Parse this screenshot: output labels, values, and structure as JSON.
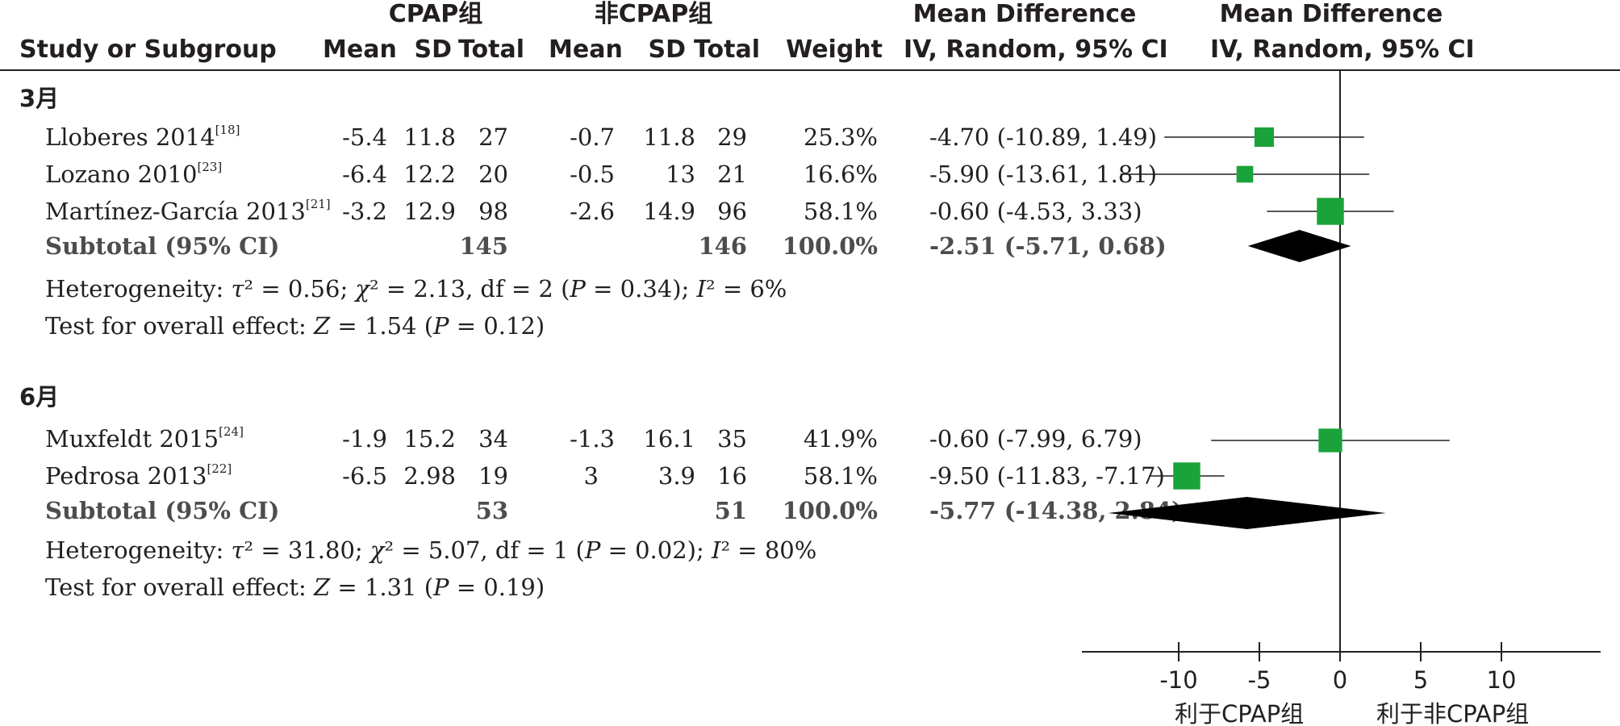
{
  "header": {
    "group_exp": "CPAP组",
    "group_ctrl": "非CPAP组",
    "md_title": "Mean Difference",
    "md_method": "IV, Random, 95% CI",
    "plot_title": "Mean Difference",
    "plot_method": "IV, Random, 95% CI",
    "col_study": "Study or Subgroup",
    "col_mean": "Mean",
    "col_sd": "SD",
    "col_total": "Total",
    "col_weight": "Weight"
  },
  "groups": [
    {
      "label": "3月",
      "studies": [
        {
          "name": "Lloberes 2014",
          "ref": "[18]",
          "m1": "-5.4",
          "sd1": "11.8",
          "n1": "27",
          "m2": "-0.7",
          "sd2": "11.8",
          "n2": "29",
          "weight": "25.3%",
          "ci": "-4.70 (-10.89, 1.49)"
        },
        {
          "name": "Lozano 2010",
          "ref": "[23]",
          "m1": "-6.4",
          "sd1": "12.2",
          "n1": "20",
          "m2": "-0.5",
          "sd2": "13",
          "n2": "21",
          "weight": "16.6%",
          "ci": "-5.90 (-13.61, 1.81)"
        },
        {
          "name": "Martínez-García 2013",
          "ref": "[21]",
          "m1": "-3.2",
          "sd1": "12.9",
          "n1": "98",
          "m2": "-2.6",
          "sd2": "14.9",
          "n2": "96",
          "weight": "58.1%",
          "ci": "-0.60 (-4.53, 3.33)"
        }
      ],
      "subtotal": {
        "label": "Subtotal (95% CI)",
        "n1": "145",
        "n2": "146",
        "weight": "100.0%",
        "ci": "-2.51 (-5.71, 0.68)"
      },
      "het": {
        "prefix": "Heterogeneity: ",
        "tau": "τ",
        "tau_val": "² = 0.56; ",
        "chi": "χ",
        "chi_val": "² = 2.13, df = 2 (",
        "p": "P",
        "p_val": " = 0.34); ",
        "i": "I",
        "i_val": "² = 6%"
      },
      "overall": {
        "prefix": "Test for overall effect: ",
        "z": "Z",
        "z_val": " = 1.54 (",
        "p": "P",
        "p_val": " = 0.12)"
      }
    },
    {
      "label": "6月",
      "studies": [
        {
          "name": "Muxfeldt 2015",
          "ref": "[24]",
          "m1": "-1.9",
          "sd1": "15.2",
          "n1": "34",
          "m2": "-1.3",
          "sd2": "16.1",
          "n2": "35",
          "weight": "41.9%",
          "ci": "-0.60 (-7.99, 6.79)"
        },
        {
          "name": "Pedrosa 2013",
          "ref": "[22]",
          "m1": "-6.5",
          "sd1": "2.98",
          "n1": "19",
          "m2": "3",
          "sd2": "3.9",
          "n2": "16",
          "weight": "58.1%",
          "ci": "-9.50 (-11.83, -7.17)"
        }
      ],
      "subtotal": {
        "label": "Subtotal (95% CI)",
        "n1": "53",
        "n2": "51",
        "weight": "100.0%",
        "ci": "-5.77 (-14.38, 2.84)"
      },
      "het": {
        "prefix": "Heterogeneity: ",
        "tau": "τ",
        "tau_val": "² = 31.80; ",
        "chi": "χ",
        "chi_val": "² = 5.07, df = 1 (",
        "p": "P",
        "p_val": " = 0.02); ",
        "i": "I",
        "i_val": "² = 80%"
      },
      "overall": {
        "prefix": "Test for overall effect: ",
        "z": "Z",
        "z_val": " = 1.31 (",
        "p": "P",
        "p_val": " = 0.19)"
      }
    }
  ],
  "axis": {
    "ticks": [
      "-10",
      "-5",
      "0",
      "5",
      "10"
    ],
    "favours_left": "利于CPAP组",
    "favours_right": "利于非CPAP组"
  },
  "chart_data": {
    "type": "forest",
    "xlim": [
      -16,
      16
    ],
    "x_ticks": [
      -10,
      -5,
      0,
      5,
      10
    ],
    "study_color": "#1aa33a",
    "summary_color": "#000000",
    "studies": [
      {
        "name": "Lloberes 2014",
        "md": -4.7,
        "lo": -10.89,
        "hi": 1.49,
        "weight": 25.3
      },
      {
        "name": "Lozano 2010",
        "md": -5.9,
        "lo": -13.61,
        "hi": 1.81,
        "weight": 16.6
      },
      {
        "name": "Martínez-García 2013",
        "md": -0.6,
        "lo": -4.53,
        "hi": 3.33,
        "weight": 58.1
      },
      {
        "name": "Muxfeldt 2015",
        "md": -0.6,
        "lo": -7.99,
        "hi": 6.79,
        "weight": 41.9
      },
      {
        "name": "Pedrosa 2013",
        "md": -9.5,
        "lo": -11.83,
        "hi": -7.17,
        "weight": 58.1
      }
    ],
    "subtotals": [
      {
        "name": "3月 Subtotal (95% CI)",
        "md": -2.51,
        "lo": -5.71,
        "hi": 0.68
      },
      {
        "name": "6月 Subtotal (95% CI)",
        "md": -5.77,
        "lo": -14.38,
        "hi": 2.84
      }
    ]
  }
}
